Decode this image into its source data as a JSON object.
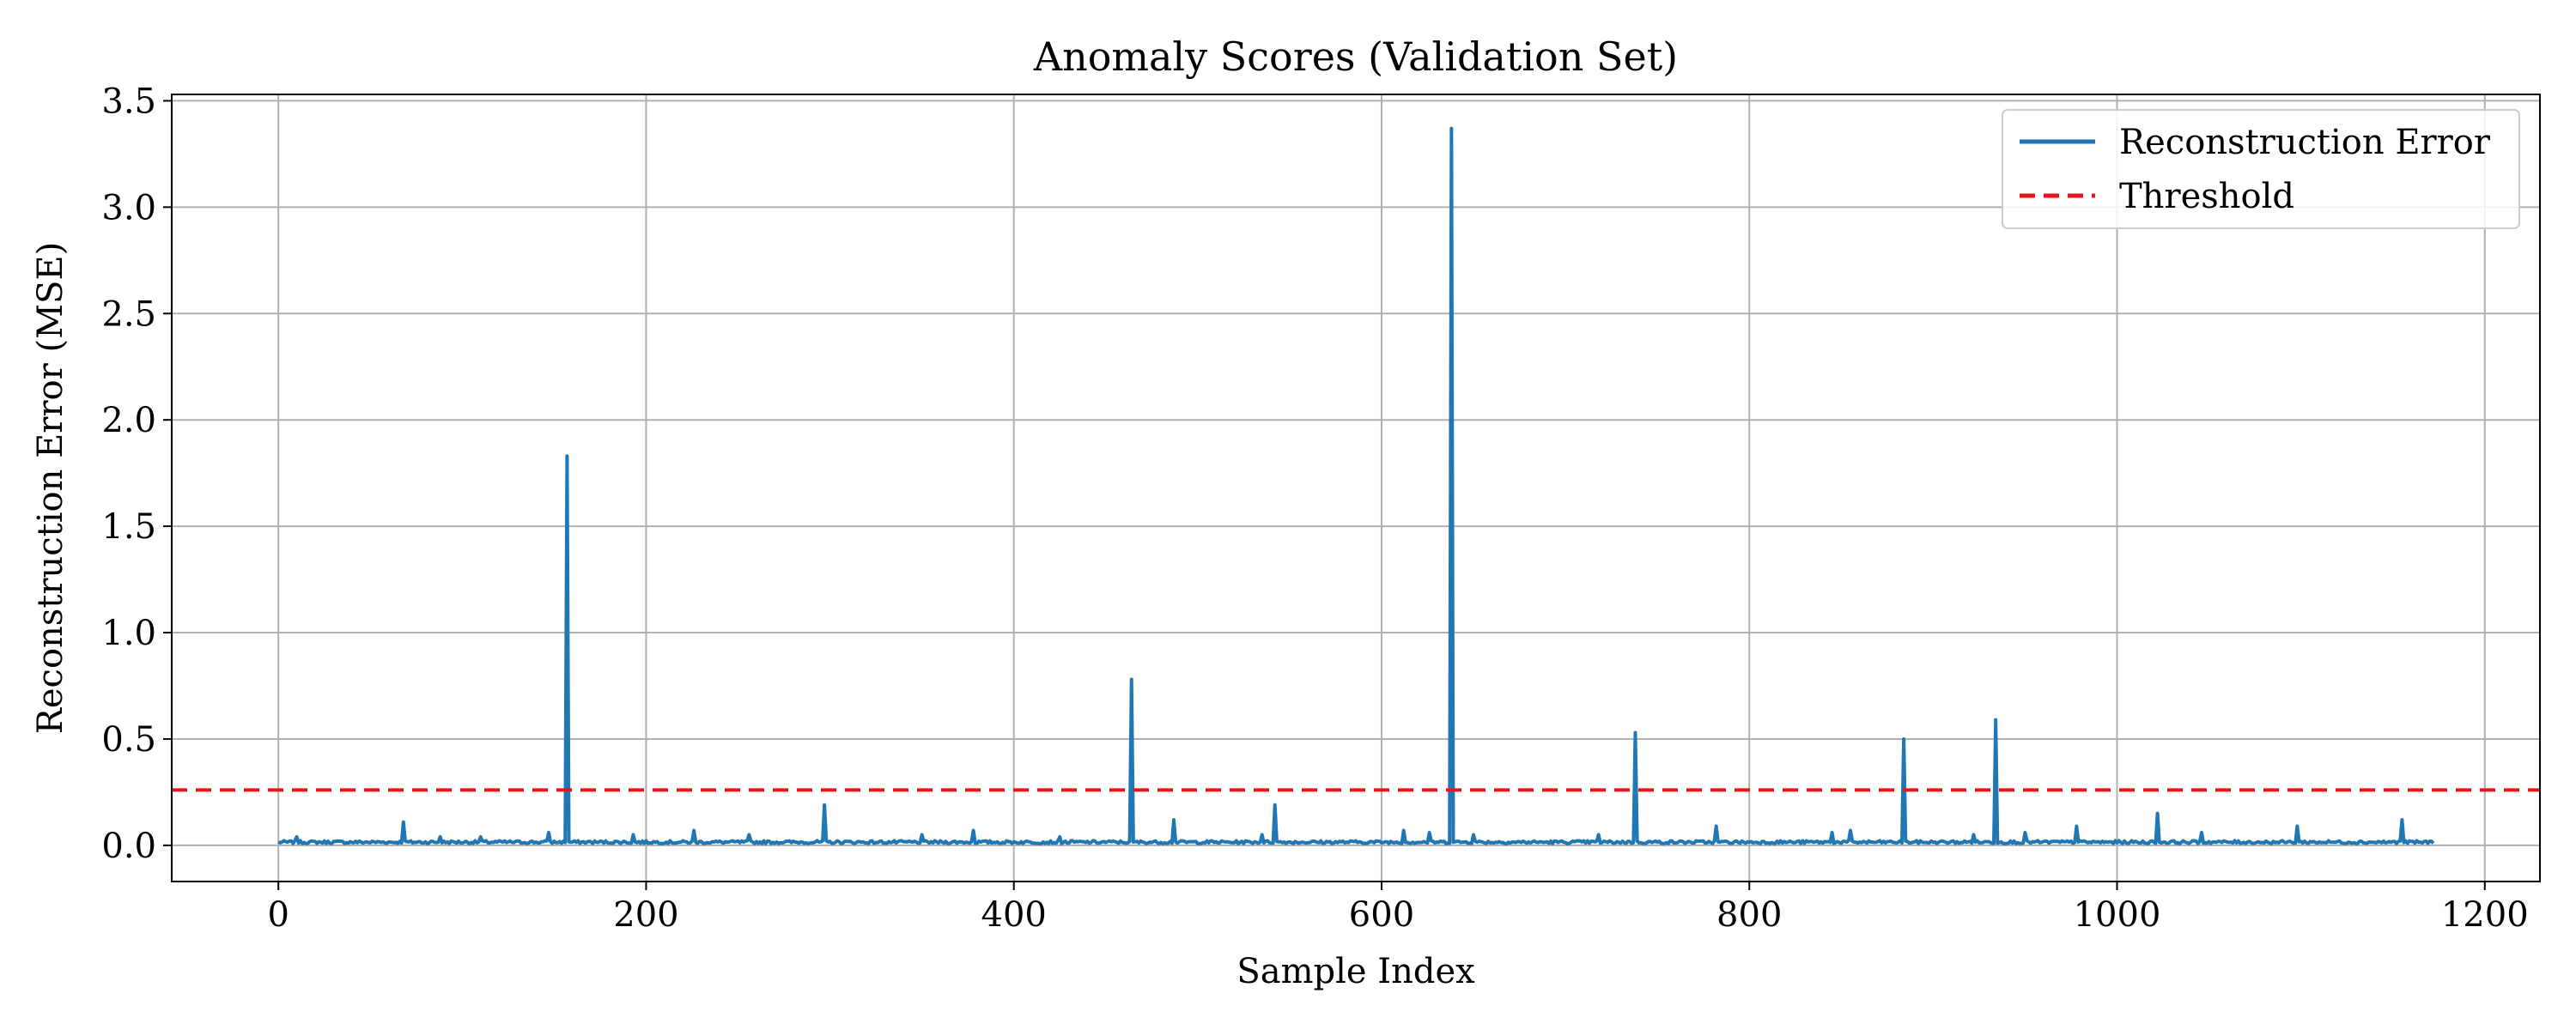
{
  "chart_data": {
    "type": "line",
    "title": "Anomaly Scores (Validation Set)",
    "xlabel": "Sample Index",
    "ylabel": "Reconstruction Error (MSE)",
    "xlim": [
      -58,
      1230
    ],
    "ylim": [
      -0.17,
      3.53
    ],
    "xticks": [
      0,
      200,
      400,
      600,
      800,
      1000,
      1200
    ],
    "xtick_labels": [
      "0",
      "200",
      "400",
      "600",
      "800",
      "1000",
      "1200"
    ],
    "yticks": [
      0.0,
      0.5,
      1.0,
      1.5,
      2.0,
      2.5,
      3.0,
      3.5
    ],
    "ytick_labels": [
      "0.0",
      "0.5",
      "1.0",
      "1.5",
      "2.0",
      "2.5",
      "3.0",
      "3.5"
    ],
    "grid": true,
    "legend_position": "upper-right",
    "n_samples": 1173,
    "baseline": 0.015,
    "spikes": [
      {
        "x": 10,
        "y": 0.04
      },
      {
        "x": 68,
        "y": 0.11
      },
      {
        "x": 88,
        "y": 0.04
      },
      {
        "x": 110,
        "y": 0.04
      },
      {
        "x": 147,
        "y": 0.06
      },
      {
        "x": 157,
        "y": 1.83
      },
      {
        "x": 193,
        "y": 0.05
      },
      {
        "x": 226,
        "y": 0.07
      },
      {
        "x": 256,
        "y": 0.05
      },
      {
        "x": 297,
        "y": 0.19
      },
      {
        "x": 350,
        "y": 0.05
      },
      {
        "x": 378,
        "y": 0.07
      },
      {
        "x": 425,
        "y": 0.04
      },
      {
        "x": 464,
        "y": 0.78
      },
      {
        "x": 487,
        "y": 0.12
      },
      {
        "x": 535,
        "y": 0.05
      },
      {
        "x": 542,
        "y": 0.19
      },
      {
        "x": 612,
        "y": 0.07
      },
      {
        "x": 626,
        "y": 0.06
      },
      {
        "x": 638,
        "y": 3.37
      },
      {
        "x": 650,
        "y": 0.05
      },
      {
        "x": 718,
        "y": 0.05
      },
      {
        "x": 738,
        "y": 0.53
      },
      {
        "x": 782,
        "y": 0.09
      },
      {
        "x": 845,
        "y": 0.06
      },
      {
        "x": 855,
        "y": 0.07
      },
      {
        "x": 884,
        "y": 0.5
      },
      {
        "x": 922,
        "y": 0.05
      },
      {
        "x": 934,
        "y": 0.59
      },
      {
        "x": 950,
        "y": 0.06
      },
      {
        "x": 978,
        "y": 0.09
      },
      {
        "x": 1022,
        "y": 0.15
      },
      {
        "x": 1046,
        "y": 0.06
      },
      {
        "x": 1098,
        "y": 0.09
      },
      {
        "x": 1155,
        "y": 0.12
      }
    ],
    "series": [
      {
        "name": "Reconstruction Error",
        "color": "#1f77b4",
        "style": "solid"
      },
      {
        "name": "Threshold",
        "color": "#e8151b",
        "style": "dashed",
        "value": 0.26
      }
    ]
  }
}
